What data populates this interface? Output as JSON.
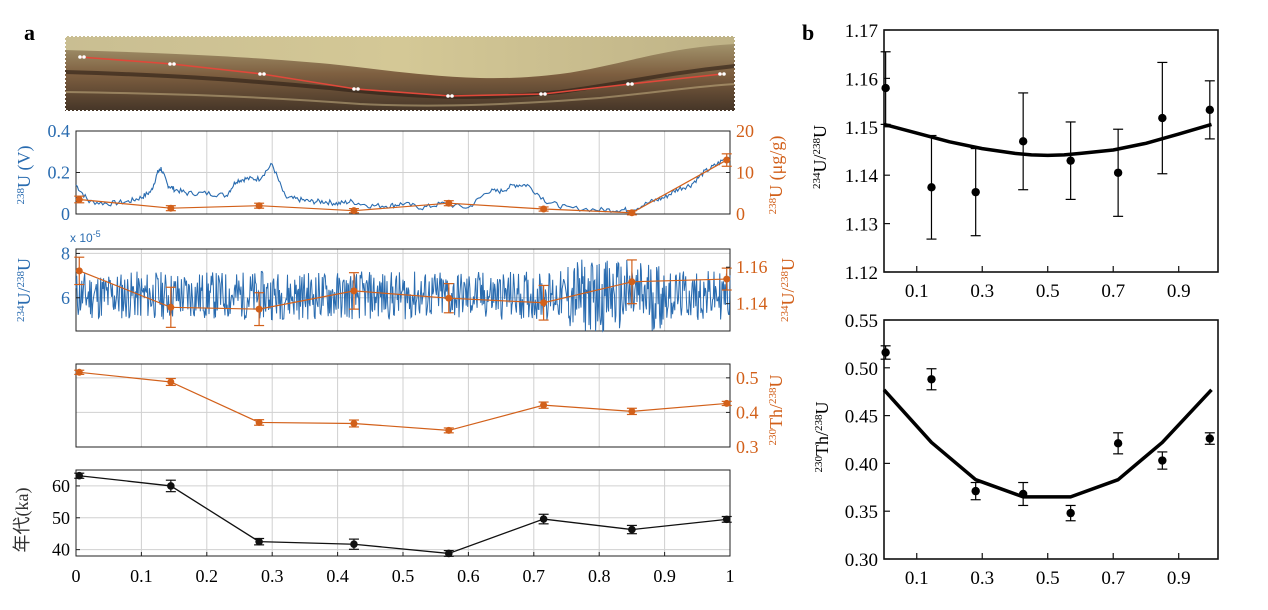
{
  "panel_labels": {
    "a": "a",
    "b": "b"
  },
  "photo": {
    "description_icon": "sample-photo"
  },
  "colors": {
    "blue": "#2a6cb0",
    "orange": "#d2601a",
    "black": "#111111",
    "grid": "#d0d0d0"
  },
  "chart_data": [
    {
      "id": "a1",
      "type": "line",
      "ylabel_left": "238U (V)",
      "ylabel_right": "238U (μg/g)",
      "ylim_left": [
        0,
        0.4
      ],
      "ylim_right": [
        0,
        20
      ],
      "yticks_left": [
        "0",
        "0.2",
        "0.4"
      ],
      "yticks_right": [
        "0",
        "10",
        "20"
      ],
      "series": [
        {
          "name": "",
          "axis": "left",
          "x_profile": [
            0.0,
            0.02,
            0.05,
            0.08,
            0.1,
            0.115,
            0.125,
            0.13,
            0.14,
            0.15,
            0.17,
            0.2,
            0.23,
            0.245,
            0.26,
            0.28,
            0.3,
            0.32,
            0.34,
            0.36,
            0.38,
            0.4,
            0.42,
            0.45,
            0.48,
            0.5,
            0.53,
            0.56,
            0.6,
            0.63,
            0.65,
            0.67,
            0.69,
            0.72,
            0.75,
            0.8,
            0.83,
            0.85,
            0.88,
            0.9,
            0.92,
            0.94,
            0.96,
            0.98,
            1.0
          ],
          "y_profile": [
            0.14,
            0.06,
            0.05,
            0.06,
            0.08,
            0.11,
            0.2,
            0.22,
            0.14,
            0.12,
            0.1,
            0.1,
            0.09,
            0.16,
            0.17,
            0.17,
            0.24,
            0.08,
            0.07,
            0.06,
            0.06,
            0.05,
            0.06,
            0.04,
            0.04,
            0.05,
            0.03,
            0.05,
            0.03,
            0.11,
            0.11,
            0.14,
            0.14,
            0.06,
            0.03,
            0.02,
            0.02,
            0.02,
            0.06,
            0.08,
            0.12,
            0.14,
            0.2,
            0.24,
            0.28
          ]
        },
        {
          "name": "",
          "axis": "right",
          "x": [
            0.005,
            0.145,
            0.28,
            0.425,
            0.57,
            0.715,
            0.85,
            0.995
          ],
          "y": [
            3.5,
            1.4,
            2.0,
            0.8,
            2.6,
            1.2,
            0.3,
            13.0
          ],
          "err": [
            0.8,
            0.6,
            0.6,
            0.5,
            0.6,
            0.5,
            0.5,
            1.5
          ]
        }
      ]
    },
    {
      "id": "a2",
      "type": "line",
      "ylabel_left": "234U/238U",
      "ylabel_right": "234U/238U",
      "multiplier": "x 10-5",
      "ylim_left": [
        4.5,
        8.2
      ],
      "ylim_right": [
        1.125,
        1.17
      ],
      "yticks_left": [
        "6",
        "8"
      ],
      "yticks_right": [
        "1.14",
        "1.16"
      ],
      "series": [
        {
          "name": "",
          "axis": "left",
          "noise_center": 6.1,
          "noise_amplitude": 1.1
        },
        {
          "name": "",
          "axis": "right",
          "x": [
            0.005,
            0.145,
            0.28,
            0.425,
            0.57,
            0.715,
            0.85,
            0.995
          ],
          "y": [
            1.158,
            1.138,
            1.137,
            1.147,
            1.143,
            1.1405,
            1.152,
            1.1535
          ],
          "err": [
            0.0075,
            0.011,
            0.009,
            0.01,
            0.008,
            0.0095,
            0.012,
            0.006
          ]
        }
      ]
    },
    {
      "id": "a3",
      "type": "line",
      "ylabel_right": "230Th/238U",
      "ylim_right": [
        0.3,
        0.54
      ],
      "yticks_right": [
        "0.3",
        "0.4",
        "0.5"
      ],
      "series": [
        {
          "name": "",
          "axis": "right",
          "x": [
            0.005,
            0.145,
            0.28,
            0.425,
            0.57,
            0.715,
            0.85,
            0.995
          ],
          "y": [
            0.516,
            0.488,
            0.371,
            0.368,
            0.348,
            0.421,
            0.403,
            0.426
          ],
          "err": [
            0.006,
            0.01,
            0.008,
            0.01,
            0.007,
            0.009,
            0.009,
            0.006
          ]
        }
      ]
    },
    {
      "id": "a4",
      "type": "line",
      "ylabel_left": "年代(ka)",
      "xlim": [
        0,
        1
      ],
      "ylim_left": [
        38,
        65
      ],
      "yticks_left": [
        "40",
        "50",
        "60"
      ],
      "xticks": [
        "0",
        "0.1",
        "0.2",
        "0.3",
        "0.4",
        "0.5",
        "0.6",
        "0.7",
        "0.8",
        "0.9",
        "1"
      ],
      "series": [
        {
          "name": "",
          "axis": "left",
          "x": [
            0.005,
            0.145,
            0.28,
            0.425,
            0.57,
            0.715,
            0.85,
            0.995
          ],
          "y": [
            63.2,
            60.0,
            42.5,
            41.7,
            38.8,
            49.6,
            46.3,
            49.5
          ],
          "err": [
            0.8,
            1.8,
            1.0,
            1.6,
            0.9,
            1.5,
            1.3,
            0.9
          ]
        }
      ]
    },
    {
      "id": "b1",
      "type": "scatter",
      "ylabel": "234U/238U",
      "xlim": [
        0,
        1.02
      ],
      "ylim": [
        1.12,
        1.17
      ],
      "xticks": [
        "0.1",
        "0.3",
        "0.5",
        "0.7",
        "0.9"
      ],
      "yticks": [
        "1.12",
        "1.13",
        "1.14",
        "1.15",
        "1.16",
        "1.17"
      ],
      "points": {
        "x": [
          0.005,
          0.145,
          0.28,
          0.425,
          0.57,
          0.715,
          0.85,
          0.995
        ],
        "y": [
          1.158,
          1.1375,
          1.1365,
          1.147,
          1.143,
          1.1405,
          1.1518,
          1.1535
        ],
        "err": [
          0.0075,
          0.0107,
          0.009,
          0.01,
          0.008,
          0.009,
          0.0115,
          0.006
        ]
      },
      "fit": {
        "x": [
          0.0,
          0.1,
          0.2,
          0.3,
          0.4,
          0.45,
          0.5,
          0.55,
          0.6,
          0.7,
          0.8,
          0.9,
          1.0
        ],
        "y": [
          1.1505,
          1.1487,
          1.1469,
          1.1455,
          1.1445,
          1.1442,
          1.1441,
          1.1442,
          1.1445,
          1.1452,
          1.1466,
          1.1485,
          1.1505
        ]
      }
    },
    {
      "id": "b2",
      "type": "scatter",
      "ylabel": "230Th/238U",
      "xlim": [
        0,
        1.02
      ],
      "ylim": [
        0.3,
        0.55
      ],
      "xticks": [
        "0.1",
        "0.3",
        "0.5",
        "0.7",
        "0.9"
      ],
      "yticks": [
        "0.30",
        "0.35",
        "0.40",
        "0.45",
        "0.50",
        "0.55"
      ],
      "points": {
        "x": [
          0.005,
          0.145,
          0.28,
          0.425,
          0.57,
          0.715,
          0.85,
          0.995
        ],
        "y": [
          0.516,
          0.488,
          0.371,
          0.368,
          0.348,
          0.421,
          0.403,
          0.426
        ],
        "err": [
          0.007,
          0.011,
          0.009,
          0.012,
          0.008,
          0.011,
          0.009,
          0.006
        ]
      },
      "fit": {
        "x": [
          0.0,
          0.145,
          0.28,
          0.425,
          0.5,
          0.57,
          0.715,
          0.85,
          1.0
        ],
        "y": [
          0.477,
          0.422,
          0.383,
          0.365,
          0.365,
          0.365,
          0.383,
          0.422,
          0.477
        ]
      }
    }
  ]
}
